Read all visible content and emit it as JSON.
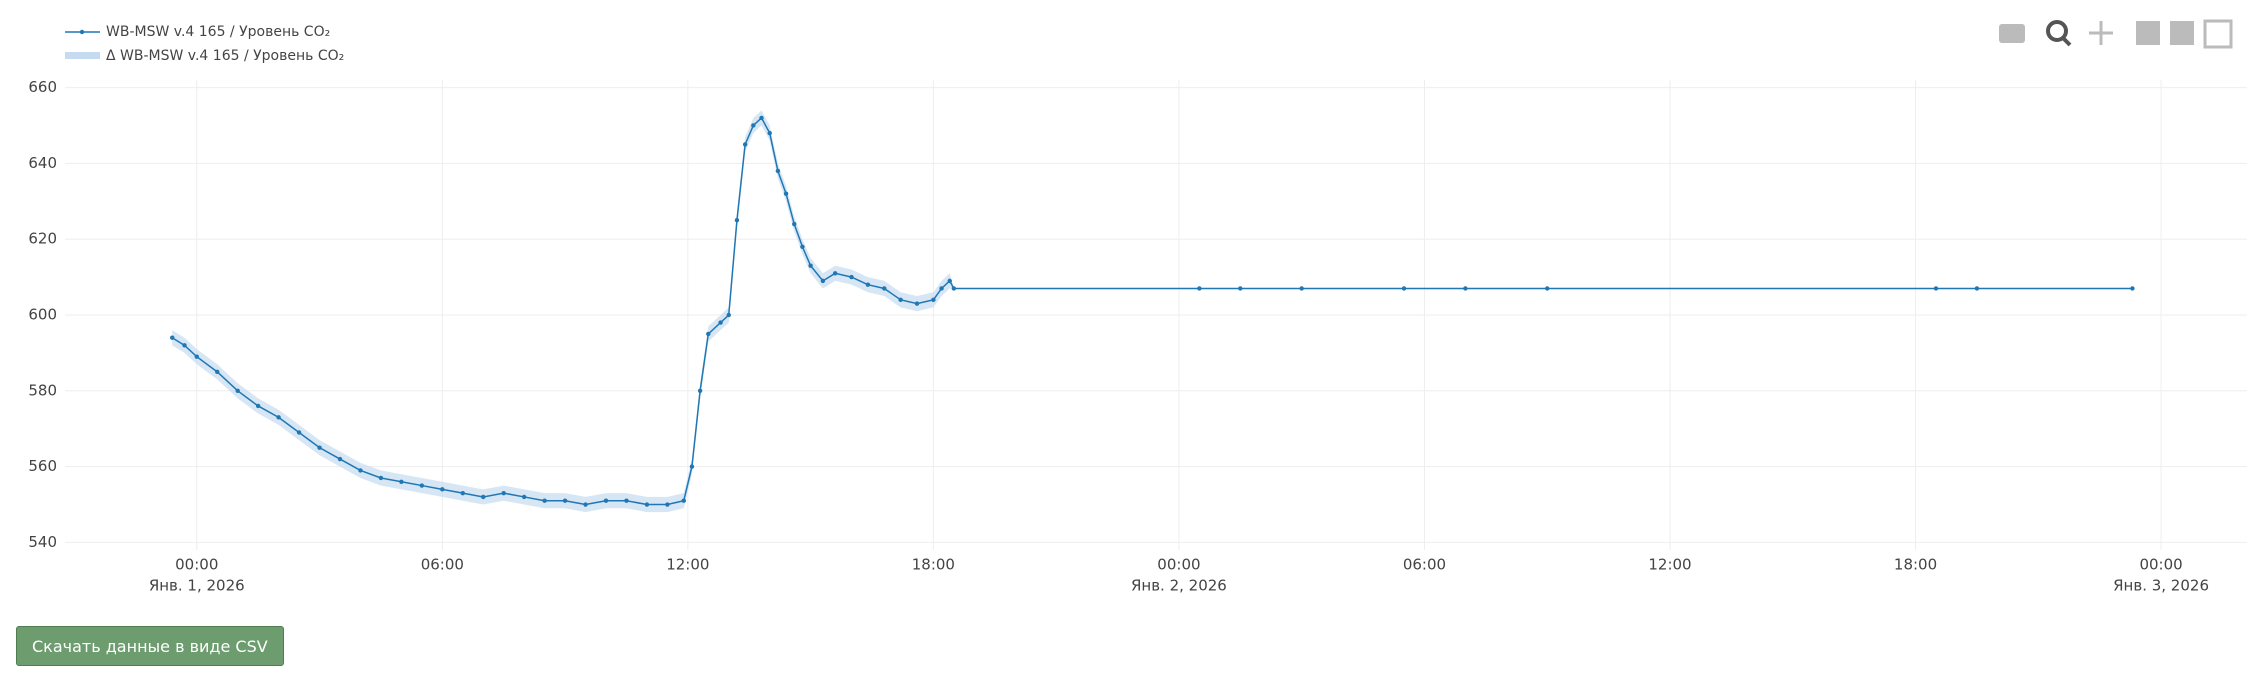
{
  "chart_data": {
    "type": "line",
    "x": [
      -0.6,
      -0.3,
      0,
      0.5,
      1,
      1.5,
      2,
      2.5,
      3,
      3.5,
      4,
      4.5,
      5,
      5.5,
      6,
      6.5,
      7,
      7.5,
      8,
      8.5,
      9,
      9.5,
      10,
      10.5,
      11,
      11.5,
      11.9,
      12.1,
      12.3,
      12.5,
      12.8,
      13,
      13.2,
      13.4,
      13.6,
      13.8,
      14,
      14.2,
      14.4,
      14.6,
      14.8,
      15,
      15.3,
      15.6,
      16,
      16.4,
      16.8,
      17.2,
      17.6,
      18,
      18.2,
      18.4,
      18.5,
      24.5,
      25.5,
      27,
      29.5,
      31,
      33,
      42.5,
      43.5,
      47.3
    ],
    "series": [
      {
        "name": "WB-MSW v.4 165 / Уровень CO₂",
        "color": "#1f77b4",
        "values": [
          594,
          592,
          589,
          585,
          580,
          576,
          573,
          569,
          565,
          562,
          559,
          557,
          556,
          555,
          554,
          553,
          552,
          553,
          552,
          551,
          551,
          550,
          551,
          551,
          550,
          550,
          551,
          560,
          580,
          595,
          598,
          600,
          625,
          645,
          650,
          652,
          648,
          638,
          632,
          624,
          618,
          613,
          609,
          611,
          610,
          608,
          607,
          604,
          603,
          604,
          607,
          609,
          607,
          607,
          607,
          607,
          607,
          607,
          607,
          607,
          607,
          607
        ]
      },
      {
        "name": "Δ WB-MSW v.4 165 / Уровень CO₂",
        "color": "#c6dbef",
        "values": [
          2,
          2,
          2,
          2,
          2,
          2,
          2,
          2,
          2,
          2,
          2,
          2,
          2,
          2,
          2,
          2,
          2,
          2,
          2,
          2,
          2,
          2,
          2,
          2,
          2,
          2,
          2,
          2,
          2,
          2,
          2,
          2,
          2,
          2,
          2,
          2,
          2,
          2,
          2,
          2,
          2,
          2,
          2,
          2,
          2,
          2,
          2,
          2,
          2,
          2,
          2,
          2,
          0,
          0,
          0,
          0,
          0,
          0,
          0,
          0,
          0,
          0
        ]
      }
    ],
    "xlim": [
      -3.22,
      50.1
    ],
    "xticks": [
      {
        "value": 0,
        "label": "00:00"
      },
      {
        "value": 6,
        "label": "06:00"
      },
      {
        "value": 12,
        "label": "12:00"
      },
      {
        "value": 18,
        "label": "18:00"
      },
      {
        "value": 24,
        "label": "00:00"
      },
      {
        "value": 30,
        "label": "06:00"
      },
      {
        "value": 36,
        "label": "12:00"
      },
      {
        "value": 42,
        "label": "18:00"
      },
      {
        "value": 48,
        "label": "00:00"
      }
    ],
    "xtick_dates": [
      {
        "value": 0,
        "label": "Янв. 1, 2026"
      },
      {
        "value": 24,
        "label": "Янв. 2, 2026"
      },
      {
        "value": 48,
        "label": "Янв. 3, 2026"
      }
    ],
    "ylim": [
      538,
      662
    ],
    "yticks": [
      540,
      560,
      580,
      600,
      620,
      640,
      660
    ],
    "grid": true
  },
  "download_button": "Скачать данные в виде CSV"
}
